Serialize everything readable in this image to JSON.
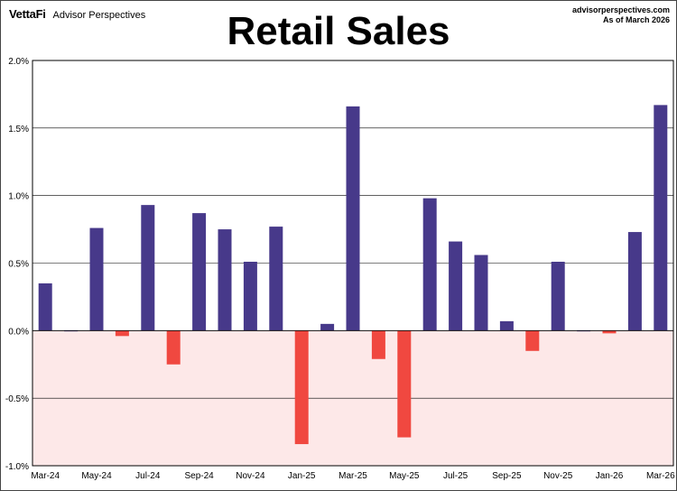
{
  "header": {
    "logo": "VettaFi",
    "brand": "Advisor Perspectives",
    "source_line1": "advisorperspectives.com",
    "source_line2": "As of March 2026"
  },
  "colors": {
    "positive": "#47398a",
    "negative": "#f04840",
    "negative_region": "#fde8e8"
  },
  "chart_data": {
    "type": "bar",
    "title": "Retail Sales",
    "xlabel": "",
    "ylabel": "",
    "ylim": [
      -1.0,
      2.0
    ],
    "y_ticks": [
      2.0,
      1.5,
      1.0,
      0.5,
      0.0,
      -0.5,
      -1.0
    ],
    "y_tick_labels": [
      "2.0%",
      "1.5%",
      "1.0%",
      "0.5%",
      "0.0%",
      "-0.5%",
      "-1.0%"
    ],
    "grid": "horizontal",
    "categories": [
      "Mar-24",
      "Apr-24",
      "May-24",
      "Jun-24",
      "Jul-24",
      "Aug-24",
      "Sep-24",
      "Oct-24",
      "Nov-24",
      "Dec-24",
      "Jan-25",
      "Feb-25",
      "Mar-25",
      "Apr-25",
      "May-25",
      "Jun-25",
      "Jul-25",
      "Aug-25",
      "Sep-25",
      "Oct-25",
      "Nov-25",
      "Dec-25",
      "Jan-26",
      "Feb-26",
      "Mar-26"
    ],
    "x_tick_labels": [
      "Mar-24",
      "May-24",
      "Jul-24",
      "Sep-24",
      "Nov-24",
      "Jan-25",
      "Mar-25",
      "May-25",
      "Jul-25",
      "Sep-25",
      "Nov-25",
      "Jan-26",
      "Mar-26"
    ],
    "values": [
      0.35,
      0.0,
      0.76,
      -0.04,
      0.93,
      -0.25,
      0.87,
      0.75,
      0.51,
      0.77,
      -0.84,
      0.05,
      1.66,
      -0.21,
      -0.79,
      0.98,
      0.66,
      0.56,
      0.07,
      -0.15,
      0.51,
      0.0,
      -0.02,
      0.73,
      1.67
    ]
  }
}
